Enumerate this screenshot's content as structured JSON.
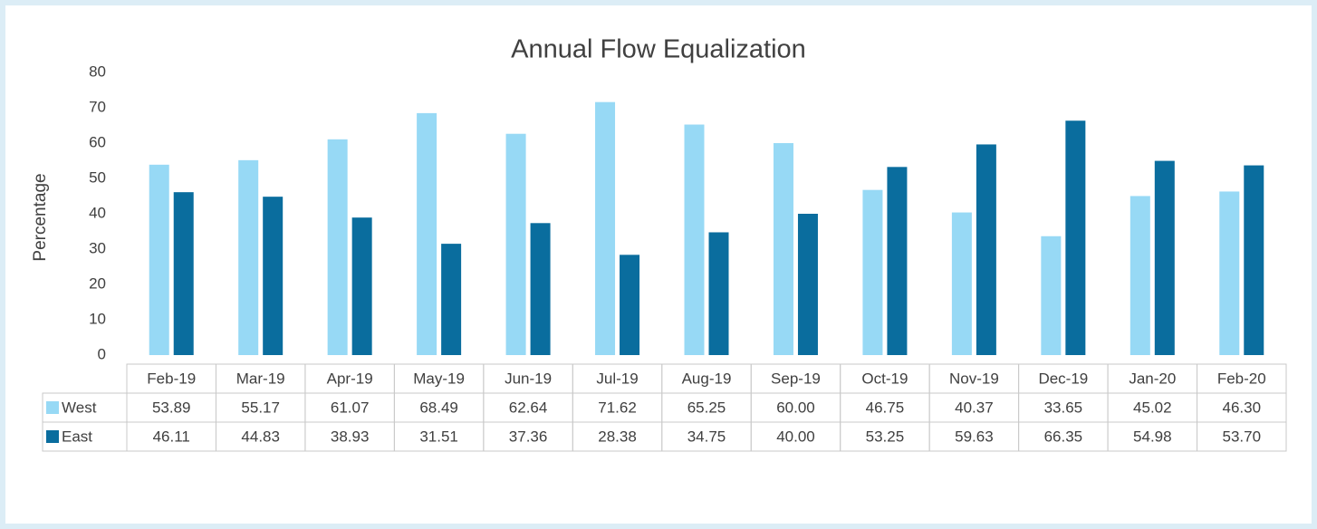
{
  "chart_data": {
    "type": "bar",
    "title": "Annual Flow Equalization",
    "y_label": "Percentage",
    "categories": [
      "Feb-19",
      "Mar-19",
      "Apr-19",
      "May-19",
      "Jun-19",
      "Jul-19",
      "Aug-19",
      "Sep-19",
      "Oct-19",
      "Nov-19",
      "Dec-19",
      "Jan-20",
      "Feb-20"
    ],
    "series": [
      {
        "name": "West",
        "color": "#97d9f5",
        "values": [
          53.89,
          55.17,
          61.07,
          68.49,
          62.64,
          71.62,
          65.25,
          60,
          46.75,
          40.37,
          33.65,
          45.02,
          46.3
        ],
        "value_labels": [
          "53.89",
          "55.17",
          "61.07",
          "68.49",
          "62.64",
          "71.62",
          "65.25",
          "60.00",
          "46.75",
          "40.37",
          "33.65",
          "45.02",
          "46.30"
        ]
      },
      {
        "name": "East",
        "color": "#0a6d9e",
        "values": [
          46.11,
          44.83,
          38.93,
          31.51,
          37.36,
          28.38,
          34.75,
          40,
          53.25,
          59.63,
          66.35,
          54.98,
          53.7
        ],
        "value_labels": [
          "46.11",
          "44.83",
          "38.93",
          "31.51",
          "37.36",
          "28.38",
          "34.75",
          "40.00",
          "53.25",
          "59.63",
          "66.35",
          "54.98",
          "53.70"
        ]
      }
    ],
    "ylim": [
      0,
      80
    ],
    "yticks": [
      0,
      10,
      20,
      30,
      40,
      50,
      60,
      70,
      80
    ],
    "grid": false,
    "legend": "table"
  }
}
